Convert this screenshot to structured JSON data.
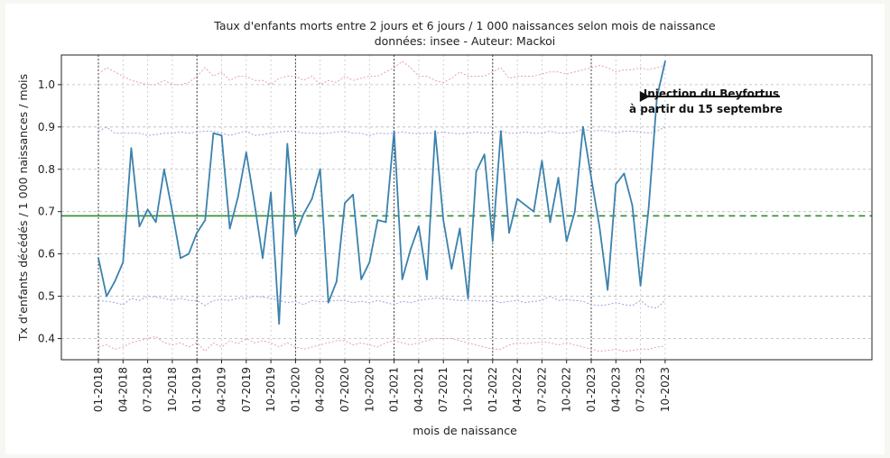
{
  "chart_data": {
    "type": "line",
    "title": "Taux d'enfants morts entre 2 jours et 6 jours / 1 000 naissances selon mois de naissance",
    "subtitle": "données: insee - Auteur: Mackoi",
    "xlabel": "mois de naissance",
    "ylabel": "Tx d'enfants décédés / 1 000 naissances / mois",
    "ylim": [
      0.35,
      1.07
    ],
    "y_ticks": [
      0.4,
      0.5,
      0.6,
      0.7,
      0.8,
      0.9,
      1.0
    ],
    "x_tick_labels": [
      "01-2018",
      "04-2018",
      "07-2018",
      "10-2018",
      "01-2019",
      "04-2019",
      "07-2019",
      "10-2019",
      "01-2020",
      "04-2020",
      "07-2020",
      "10-2020",
      "01-2021",
      "04-2021",
      "07-2021",
      "10-2021",
      "01-2022",
      "04-2022",
      "07-2022",
      "10-2022",
      "01-2023",
      "04-2023",
      "07-2023",
      "10-2023"
    ],
    "year_separators": [
      "01-2018",
      "01-2019",
      "01-2020",
      "01-2021",
      "01-2022",
      "01-2023"
    ],
    "grid": true,
    "reference_line": {
      "value": 0.69,
      "color": "#2e8b2e"
    },
    "series": [
      {
        "color": "#3b82ad",
        "values": [
          0.59,
          0.5,
          0.535,
          0.58,
          0.85,
          0.665,
          0.705,
          0.675,
          0.8,
          0.7,
          0.59,
          0.6,
          0.65,
          0.68,
          0.885,
          0.88,
          0.66,
          0.735,
          0.84,
          0.72,
          0.59,
          0.745,
          0.435,
          0.86,
          0.645,
          0.695,
          0.73,
          0.8,
          0.485,
          0.535,
          0.72,
          0.74,
          0.54,
          0.58,
          0.68,
          0.675,
          0.89,
          0.54,
          0.61,
          0.665,
          0.54,
          0.89,
          0.68,
          0.565,
          0.66,
          0.495,
          0.795,
          0.835,
          0.63,
          0.89,
          0.65,
          0.73,
          0.715,
          0.7,
          0.82,
          0.675,
          0.78,
          0.63,
          0.7,
          0.9,
          0.78,
          0.665,
          0.515,
          0.765,
          0.79,
          0.715,
          0.525,
          0.71,
          0.97,
          1.055
        ]
      }
    ],
    "band_series": [
      {
        "color": "#e8a0a8",
        "values": [
          1.025,
          1.04,
          1.03,
          1.02,
          1.01,
          1.005,
          1.0,
          1.0,
          1.01,
          1.0,
          1.0,
          1.005,
          1.02,
          1.04,
          1.02,
          1.03,
          1.01,
          1.02,
          1.02,
          1.01,
          1.01,
          1.0,
          1.015,
          1.02,
          1.02,
          1.01,
          1.02,
          1.0,
          1.01,
          1.005,
          1.02,
          1.01,
          1.015,
          1.02,
          1.02,
          1.03,
          1.04,
          1.055,
          1.04,
          1.02,
          1.02,
          1.01,
          1.005,
          1.015,
          1.03,
          1.02,
          1.02,
          1.02,
          1.03,
          1.04,
          1.015,
          1.02,
          1.02,
          1.02,
          1.025,
          1.03,
          1.03,
          1.025,
          1.03,
          1.035,
          1.04,
          1.045,
          1.04,
          1.03,
          1.035,
          1.035,
          1.04,
          1.035,
          1.04,
          1.045
        ]
      },
      {
        "color": "#a0a0e0",
        "values": [
          0.89,
          0.9,
          0.885,
          0.885,
          0.885,
          0.885,
          0.88,
          0.882,
          0.885,
          0.885,
          0.888,
          0.885,
          0.888,
          0.89,
          0.89,
          0.885,
          0.88,
          0.885,
          0.89,
          0.88,
          0.882,
          0.885,
          0.888,
          0.89,
          0.89,
          0.885,
          0.885,
          0.884,
          0.885,
          0.888,
          0.89,
          0.885,
          0.885,
          0.88,
          0.885,
          0.884,
          0.885,
          0.888,
          0.885,
          0.884,
          0.885,
          0.885,
          0.888,
          0.885,
          0.884,
          0.885,
          0.888,
          0.885,
          0.885,
          0.89,
          0.885,
          0.885,
          0.888,
          0.885,
          0.885,
          0.89,
          0.885,
          0.885,
          0.888,
          0.895,
          0.89,
          0.892,
          0.89,
          0.885,
          0.89,
          0.89,
          0.888,
          0.885,
          0.89,
          0.9
        ]
      },
      {
        "color": "#a0a0e0",
        "values": [
          0.49,
          0.488,
          0.485,
          0.48,
          0.495,
          0.49,
          0.5,
          0.498,
          0.495,
          0.49,
          0.495,
          0.49,
          0.49,
          0.478,
          0.49,
          0.492,
          0.49,
          0.495,
          0.495,
          0.5,
          0.498,
          0.495,
          0.49,
          0.485,
          0.488,
          0.48,
          0.49,
          0.487,
          0.488,
          0.49,
          0.49,
          0.485,
          0.488,
          0.485,
          0.49,
          0.485,
          0.48,
          0.488,
          0.485,
          0.49,
          0.493,
          0.495,
          0.495,
          0.492,
          0.49,
          0.49,
          0.49,
          0.488,
          0.49,
          0.485,
          0.488,
          0.49,
          0.485,
          0.488,
          0.49,
          0.5,
          0.49,
          0.492,
          0.49,
          0.488,
          0.48,
          0.478,
          0.48,
          0.485,
          0.48,
          0.478,
          0.49,
          0.475,
          0.472,
          0.49
        ]
      },
      {
        "color": "#e8a0a8",
        "values": [
          0.38,
          0.385,
          0.375,
          0.38,
          0.39,
          0.395,
          0.4,
          0.405,
          0.39,
          0.385,
          0.39,
          0.38,
          0.39,
          0.37,
          0.39,
          0.38,
          0.395,
          0.388,
          0.4,
          0.39,
          0.395,
          0.39,
          0.38,
          0.39,
          0.38,
          0.375,
          0.38,
          0.385,
          0.39,
          0.395,
          0.395,
          0.385,
          0.39,
          0.385,
          0.38,
          0.39,
          0.395,
          0.39,
          0.385,
          0.39,
          0.395,
          0.4,
          0.4,
          0.4,
          0.395,
          0.39,
          0.385,
          0.38,
          0.375,
          0.375,
          0.385,
          0.39,
          0.388,
          0.39,
          0.392,
          0.39,
          0.385,
          0.39,
          0.385,
          0.38,
          0.375,
          0.37,
          0.372,
          0.375,
          0.37,
          0.372,
          0.375,
          0.375,
          0.38,
          0.382
        ]
      }
    ],
    "annotation": {
      "lines": [
        "Injection du Beyfortus",
        "à partir du 15 septembre"
      ],
      "arrow_target_index": 68
    }
  }
}
